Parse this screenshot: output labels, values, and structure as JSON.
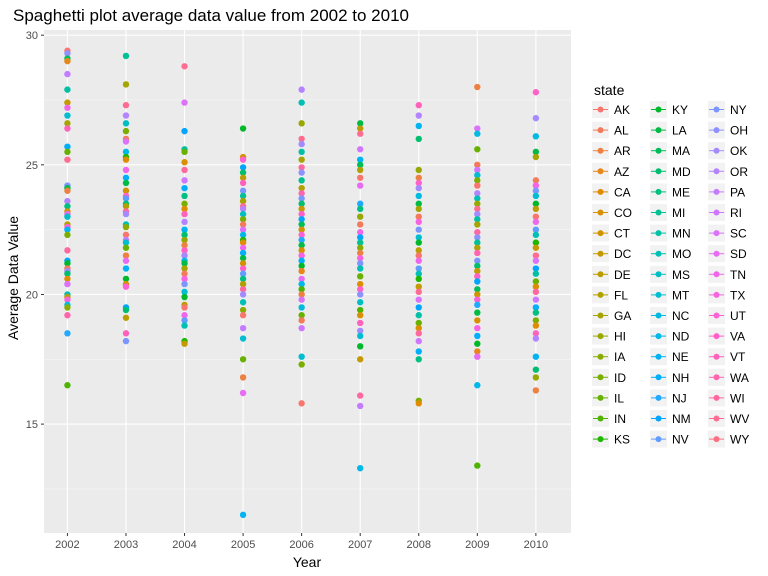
{
  "chart_data": {
    "type": "scatter",
    "title": "Spaghetti plot average data value from 2002 to 2010",
    "xlabel": "Year",
    "ylabel": "Average Data Value",
    "x_ticks": [
      "2002",
      "2003",
      "2004",
      "2005",
      "2006",
      "2007",
      "2008",
      "2009",
      "2010"
    ],
    "y_ticks": [
      "15",
      "20",
      "25",
      "30"
    ],
    "xlim": [
      2001.6,
      2010.6
    ],
    "ylim": [
      10.8,
      30.2
    ],
    "grid": true,
    "legend": {
      "title": "state",
      "placement": "right",
      "entries": [
        {
          "name": "AK",
          "color": "#F8766D"
        },
        {
          "name": "AL",
          "color": "#F37B59"
        },
        {
          "name": "AR",
          "color": "#ED8141"
        },
        {
          "name": "AZ",
          "color": "#E7861B"
        },
        {
          "name": "CA",
          "color": "#DF8C00"
        },
        {
          "name": "CO",
          "color": "#D89000"
        },
        {
          "name": "CT",
          "color": "#CF9400"
        },
        {
          "name": "DC",
          "color": "#C59900"
        },
        {
          "name": "DE",
          "color": "#BB9D00"
        },
        {
          "name": "FL",
          "color": "#B0A100"
        },
        {
          "name": "GA",
          "color": "#A5A400"
        },
        {
          "name": "HI",
          "color": "#98A800"
        },
        {
          "name": "IA",
          "color": "#8AAB00"
        },
        {
          "name": "ID",
          "color": "#7AAE00"
        },
        {
          "name": "IL",
          "color": "#67B100"
        },
        {
          "name": "IN",
          "color": "#4EB400"
        },
        {
          "name": "KS",
          "color": "#1FB700"
        },
        {
          "name": "KY",
          "color": "#00B92A"
        },
        {
          "name": "LA",
          "color": "#00BB46"
        },
        {
          "name": "MA",
          "color": "#00BD5C"
        },
        {
          "name": "MD",
          "color": "#00BE70"
        },
        {
          "name": "ME",
          "color": "#00BF82"
        },
        {
          "name": "MI",
          "color": "#00C094"
        },
        {
          "name": "MN",
          "color": "#00C0A5"
        },
        {
          "name": "MO",
          "color": "#00C0B5"
        },
        {
          "name": "MS",
          "color": "#00BFC4"
        },
        {
          "name": "MT",
          "color": "#00BDD2"
        },
        {
          "name": "NC",
          "color": "#00BBDF"
        },
        {
          "name": "ND",
          "color": "#00B8EA"
        },
        {
          "name": "NE",
          "color": "#00B4F4"
        },
        {
          "name": "NH",
          "color": "#00AFFC"
        },
        {
          "name": "NJ",
          "color": "#21A9FF"
        },
        {
          "name": "NM",
          "color": "#00A5FF"
        },
        {
          "name": "NV",
          "color": "#619CFF"
        },
        {
          "name": "NY",
          "color": "#7C96FF"
        },
        {
          "name": "OH",
          "color": "#8F91FF"
        },
        {
          "name": "OK",
          "color": "#A38BFF"
        },
        {
          "name": "OR",
          "color": "#B483FF"
        },
        {
          "name": "PA",
          "color": "#C37CFF"
        },
        {
          "name": "RI",
          "color": "#D077FF"
        },
        {
          "name": "SC",
          "color": "#DC71FA"
        },
        {
          "name": "SD",
          "color": "#E76BF3"
        },
        {
          "name": "TN",
          "color": "#F066EA"
        },
        {
          "name": "TX",
          "color": "#F763E0"
        },
        {
          "name": "UT",
          "color": "#FC61D5"
        },
        {
          "name": "VA",
          "color": "#FF61C9"
        },
        {
          "name": "VT",
          "color": "#FF62BC"
        },
        {
          "name": "WA",
          "color": "#FF65AE"
        },
        {
          "name": "WI",
          "color": "#FF689F"
        },
        {
          "name": "WV",
          "color": "#FF6C91"
        },
        {
          "name": "WY",
          "color": "#FB7083"
        }
      ]
    },
    "series": [
      {
        "x": 2002,
        "values": [
          29.4,
          29.3,
          29.1,
          29.0,
          28.5,
          27.9,
          27.4,
          27.2,
          26.9,
          26.6,
          26.4,
          25.7,
          25.5,
          25.2,
          24.2,
          24.1,
          24.0,
          23.6,
          23.4,
          23.2,
          23.1,
          23.0,
          22.7,
          22.6,
          22.5,
          22.3,
          21.7,
          21.3,
          21.2,
          21.0,
          20.9,
          20.8,
          20.6,
          20.4,
          20.0,
          19.9,
          19.8,
          19.6,
          19.5,
          19.2,
          18.5,
          16.5
        ]
      },
      {
        "x": 2003,
        "values": [
          29.2,
          28.1,
          27.3,
          26.9,
          26.6,
          26.3,
          26.0,
          25.9,
          25.5,
          25.3,
          25.2,
          24.8,
          24.5,
          24.3,
          24.0,
          23.8,
          23.7,
          23.5,
          23.4,
          23.2,
          23.1,
          22.7,
          22.6,
          22.3,
          22.1,
          22.0,
          21.8,
          21.5,
          21.3,
          21.0,
          20.6,
          20.4,
          20.3,
          19.5,
          19.4,
          19.1,
          18.5,
          18.2
        ]
      },
      {
        "x": 2004,
        "values": [
          28.8,
          27.4,
          26.3,
          25.6,
          25.5,
          25.1,
          24.8,
          24.4,
          24.1,
          23.8,
          23.5,
          23.3,
          23.1,
          22.8,
          22.5,
          22.3,
          22.1,
          21.9,
          21.7,
          21.5,
          21.3,
          21.2,
          21.0,
          20.8,
          20.6,
          20.4,
          20.1,
          19.9,
          19.6,
          19.5,
          19.2,
          19.0,
          18.8,
          18.2,
          18.1
        ]
      },
      {
        "x": 2005,
        "values": [
          26.4,
          25.3,
          25.2,
          24.9,
          24.7,
          24.5,
          24.3,
          24.0,
          23.8,
          23.6,
          23.4,
          23.3,
          23.1,
          22.9,
          22.7,
          22.5,
          22.3,
          22.1,
          22.0,
          21.8,
          21.6,
          21.4,
          21.2,
          21.0,
          20.8,
          20.6,
          20.4,
          20.2,
          20.0,
          19.7,
          19.4,
          19.2,
          18.7,
          18.3,
          17.5,
          16.8,
          16.2,
          11.5
        ]
      },
      {
        "x": 2006,
        "values": [
          27.9,
          27.4,
          26.6,
          26.0,
          25.8,
          25.5,
          25.2,
          24.9,
          24.7,
          24.4,
          24.1,
          23.9,
          23.7,
          23.5,
          23.3,
          23.1,
          22.9,
          22.7,
          22.5,
          22.3,
          22.1,
          21.9,
          21.7,
          21.5,
          21.3,
          21.1,
          20.9,
          20.6,
          20.4,
          20.2,
          20.0,
          19.8,
          19.5,
          19.2,
          19.0,
          18.7,
          17.6,
          17.3,
          15.8
        ]
      },
      {
        "x": 2007,
        "values": [
          26.6,
          26.4,
          26.2,
          25.6,
          25.2,
          25.0,
          24.8,
          24.5,
          24.2,
          23.5,
          23.3,
          23.0,
          22.7,
          22.4,
          22.2,
          22.0,
          21.8,
          21.6,
          21.4,
          21.2,
          21.0,
          20.7,
          20.4,
          20.2,
          20.0,
          19.7,
          19.4,
          19.2,
          18.9,
          18.6,
          18.4,
          18.0,
          17.5,
          16.1,
          15.7,
          13.3
        ]
      },
      {
        "x": 2008,
        "values": [
          27.3,
          26.9,
          26.5,
          26.0,
          24.8,
          24.5,
          24.3,
          24.1,
          23.8,
          23.5,
          23.3,
          23.0,
          22.8,
          22.5,
          22.2,
          22.0,
          21.7,
          21.5,
          21.3,
          21.0,
          20.8,
          20.6,
          20.3,
          20.1,
          19.8,
          19.5,
          19.2,
          18.9,
          18.7,
          18.5,
          18.2,
          17.8,
          17.5,
          15.9,
          15.8
        ]
      },
      {
        "x": 2009,
        "values": [
          28.0,
          26.4,
          26.2,
          25.6,
          25.0,
          24.8,
          24.6,
          24.4,
          24.2,
          23.9,
          23.7,
          23.5,
          23.3,
          23.1,
          22.9,
          22.7,
          22.4,
          22.2,
          22.0,
          21.8,
          21.6,
          21.3,
          21.1,
          20.9,
          20.7,
          20.5,
          20.2,
          20.0,
          19.8,
          19.6,
          19.3,
          19.0,
          18.7,
          18.4,
          18.1,
          17.8,
          17.6,
          16.5,
          13.4
        ]
      },
      {
        "x": 2010,
        "values": [
          27.8,
          26.8,
          26.1,
          25.5,
          25.3,
          24.4,
          24.2,
          24.0,
          23.8,
          23.5,
          23.3,
          23.0,
          22.8,
          22.5,
          22.3,
          22.0,
          21.8,
          21.5,
          21.3,
          21.0,
          20.8,
          20.5,
          20.3,
          20.1,
          19.8,
          19.5,
          19.3,
          19.0,
          18.8,
          18.5,
          18.3,
          17.6,
          17.1,
          16.8,
          16.3
        ]
      }
    ]
  }
}
